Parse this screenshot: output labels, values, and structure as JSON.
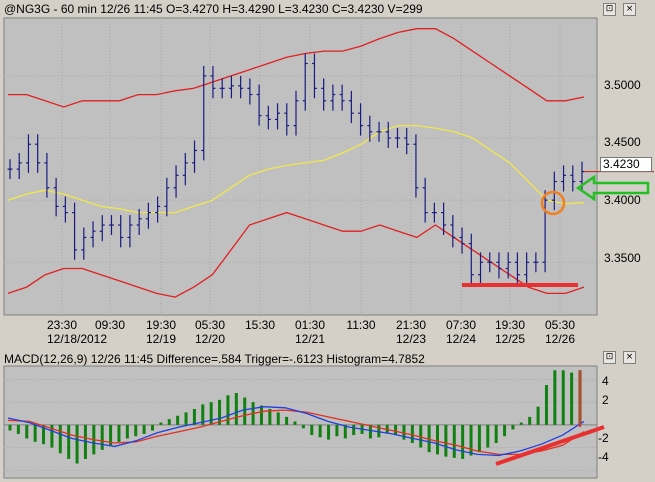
{
  "main_pane": {
    "title": "@NG3G - 60 min 12/26 11:45 O=3.4270 H=3.4290 L=3.4230 C=3.4230 V=299",
    "last_price_label": "3.4230",
    "y_ticks": [
      "3.5000",
      "3.4500",
      "3.4000",
      "3.3500"
    ],
    "x_ticks_top": [
      "23:30",
      "09:30",
      "19:30",
      "05:30",
      "15:30",
      "01:30",
      "11:30",
      "21:30",
      "07:30",
      "19:30",
      "05:30"
    ],
    "x_ticks_bottom": [
      "12/18/2012",
      "12/19",
      "12/20",
      "12/21",
      "12/23",
      "12/24",
      "12/25",
      "12/26"
    ]
  },
  "macd_pane": {
    "title": "MACD(12,26,9) 12/26 11:45 Difference=.584 Trigger=-.6123 Histogram=4.7852",
    "y_ticks": [
      "4",
      "2",
      "-2",
      "-4"
    ]
  },
  "window_buttons": {
    "pin": "⊡",
    "close": "×"
  },
  "colors": {
    "price_bars": "#1a1a80",
    "bollinger": "#e02020",
    "moving_average": "#f0e84a",
    "macd_line": "#2040e0",
    "trigger_line": "#e03020",
    "histogram": "#108010",
    "annotation_red": "#e83030",
    "annotation_green": "#20c020",
    "annotation_orange": "#f08020"
  },
  "chart_data": [
    {
      "type": "line",
      "title": "@NG3G - 60 min 12/26 11:45 O=3.4270 H=3.4290 L=3.4230 C=3.4230 V=299",
      "ylim": [
        3.31,
        3.545
      ],
      "grid": true,
      "series": [
        {
          "style": "ohlc_bars",
          "values": [
            3.425,
            3.43,
            3.445,
            3.43,
            3.41,
            3.395,
            3.39,
            3.36,
            3.37,
            3.375,
            3.38,
            3.38,
            3.37,
            3.38,
            3.385,
            3.39,
            3.395,
            3.41,
            3.42,
            3.43,
            3.44,
            3.5,
            3.49,
            3.49,
            3.492,
            3.49,
            3.485,
            3.468,
            3.465,
            3.47,
            3.46,
            3.48,
            3.51,
            3.49,
            3.48,
            3.485,
            3.48,
            3.47,
            3.46,
            3.455,
            3.455,
            3.45,
            3.45,
            3.445,
            3.41,
            3.39,
            3.39,
            3.38,
            3.37,
            3.365,
            3.34,
            3.35,
            3.35,
            3.345,
            3.35,
            3.34,
            3.35,
            3.35,
            3.4,
            3.415,
            3.42,
            3.415,
            3.423
          ]
        },
        {
          "style": "bollinger_upper",
          "values": [
            3.485,
            3.485,
            3.48,
            3.475,
            3.48,
            3.48,
            3.48,
            3.485,
            3.485,
            3.488,
            3.49,
            3.495,
            3.5,
            3.505,
            3.51,
            3.515,
            3.518,
            3.52,
            3.52,
            3.524,
            3.53,
            3.535,
            3.538,
            3.538,
            3.53,
            3.52,
            3.51,
            3.5,
            3.49,
            3.48,
            3.48,
            3.483
          ]
        },
        {
          "style": "bollinger_lower",
          "values": [
            3.325,
            3.33,
            3.34,
            3.345,
            3.345,
            3.34,
            3.335,
            3.33,
            3.325,
            3.322,
            3.33,
            3.34,
            3.36,
            3.38,
            3.385,
            3.39,
            3.385,
            3.38,
            3.375,
            3.375,
            3.38,
            3.375,
            3.37,
            3.38,
            3.37,
            3.36,
            3.35,
            3.34,
            3.33,
            3.325,
            3.325,
            3.33
          ]
        },
        {
          "style": "moving_average",
          "values": [
            3.4,
            3.405,
            3.408,
            3.405,
            3.4,
            3.395,
            3.393,
            3.39,
            3.39,
            3.39,
            3.395,
            3.4,
            3.41,
            3.42,
            3.425,
            3.428,
            3.43,
            3.432,
            3.438,
            3.445,
            3.455,
            3.46,
            3.46,
            3.458,
            3.455,
            3.45,
            3.44,
            3.43,
            3.415,
            3.4,
            3.397,
            3.398
          ]
        }
      ]
    },
    {
      "type": "bar",
      "title": "MACD(12,26,9) 12/26 11:45 Difference=.584 Trigger=-.6123 Histogram=4.7852",
      "ylim": [
        -4.5,
        5
      ],
      "series": [
        {
          "style": "histogram",
          "values": [
            -0.5,
            -0.8,
            -1.2,
            -1.5,
            -1.7,
            -2.0,
            -2.5,
            -3.0,
            -3.4,
            -3.0,
            -2.6,
            -2.2,
            -1.8,
            -1.5,
            -1.2,
            -1.0,
            -0.8,
            -0.5,
            0.2,
            0.5,
            0.8,
            1.1,
            1.4,
            1.8,
            2.0,
            2.2,
            2.6,
            2.8,
            2.4,
            2.0,
            1.7,
            1.4,
            1.1,
            0.7,
            0.3,
            -0.3,
            -0.9,
            -1.1,
            -1.3,
            -1.0,
            -1.2,
            -0.9,
            -0.8,
            -1.2,
            -1.1,
            -0.7,
            -0.9,
            -1.3,
            -1.6,
            -2.0,
            -2.4,
            -2.6,
            -2.8,
            -2.9,
            -3.0,
            -2.7,
            -2.4,
            -2.0,
            -1.6,
            -1.0,
            -0.4,
            0.2,
            0.7,
            1.6,
            3.5,
            4.8,
            4.8,
            4.6,
            4.8
          ]
        },
        {
          "style": "line",
          "values": [
            0.6,
            0.2,
            -0.5,
            -1.2,
            -1.6,
            -1.9,
            -1.4,
            -0.7,
            -0.2,
            0.2,
            0.6,
            1.3,
            1.6,
            1.5,
            1.0,
            0.3,
            -0.2,
            -0.5,
            -0.8,
            -1.2,
            -1.6,
            -2.2,
            -2.6,
            -2.7,
            -2.3,
            -1.7,
            -0.9,
            0.3
          ]
        },
        {
          "style": "trigger",
          "values": [
            0.4,
            0.3,
            -0.3,
            -0.9,
            -1.3,
            -1.6,
            -1.5,
            -1.0,
            -0.6,
            -0.2,
            0.3,
            0.8,
            1.2,
            1.3,
            1.1,
            0.7,
            0.3,
            -0.1,
            -0.5,
            -0.9,
            -1.4,
            -1.8,
            -2.3,
            -2.6,
            -2.6,
            -2.3,
            -1.8,
            -0.6
          ]
        }
      ]
    }
  ]
}
